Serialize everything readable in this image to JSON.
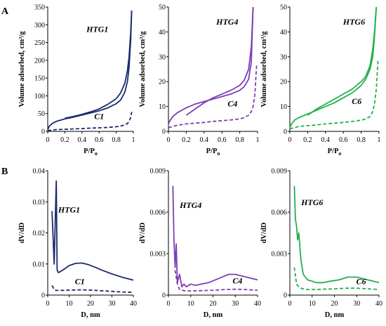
{
  "figure": {
    "letters": [
      "A",
      "B"
    ]
  },
  "chart_data": [
    {
      "type": "line",
      "panel_letter": "A",
      "xlabel": "P/P",
      "xlabel_sub": "o",
      "ylabel": "Volume adsorbed, cm³/g",
      "xlim": [
        0,
        1
      ],
      "ylim": [
        0,
        350
      ],
      "xticks": [
        "0",
        "0.2",
        "0.4",
        "0.6",
        "0.8",
        "1"
      ],
      "yticks": [
        "0",
        "50",
        "100",
        "150",
        "200",
        "250",
        "300",
        "350"
      ],
      "color": "#1a2a6c",
      "series": [
        {
          "name": "HTG1",
          "style": "solid",
          "x": [
            0.0,
            0.02,
            0.05,
            0.1,
            0.2,
            0.3,
            0.4,
            0.5,
            0.6,
            0.7,
            0.8,
            0.85,
            0.9,
            0.93,
            0.95,
            0.97,
            0.98
          ],
          "y": [
            5,
            15,
            22,
            28,
            35,
            40,
            46,
            52,
            58,
            66,
            78,
            88,
            110,
            140,
            180,
            260,
            340
          ]
        },
        {
          "name": "",
          "style": "solid",
          "x": [
            0.98,
            0.97,
            0.95,
            0.93,
            0.9,
            0.85,
            0.8,
            0.7,
            0.6,
            0.5,
            0.4,
            0.3,
            0.2
          ],
          "y": [
            340,
            280,
            210,
            170,
            135,
            108,
            92,
            76,
            63,
            55,
            48,
            42,
            37
          ]
        },
        {
          "name": "C1",
          "style": "dashed",
          "x": [
            0.0,
            0.05,
            0.1,
            0.2,
            0.3,
            0.4,
            0.5,
            0.6,
            0.7,
            0.8,
            0.85,
            0.9,
            0.93,
            0.95,
            0.97,
            0.98
          ],
          "y": [
            2,
            4,
            5,
            6,
            7,
            8,
            9,
            10,
            11,
            13,
            15,
            18,
            22,
            28,
            40,
            55
          ]
        }
      ],
      "labels": [
        {
          "text": "HTG1",
          "x": 0.58,
          "y": 280
        },
        {
          "text": "C1",
          "x": 0.6,
          "y": 35
        }
      ]
    },
    {
      "type": "line",
      "xlabel": "P/P",
      "xlabel_sub": "o",
      "ylabel": "Volume adsorbed, cm³/g",
      "xlim": [
        0,
        1
      ],
      "ylim": [
        0,
        50
      ],
      "xticks": [
        "0",
        "0.2",
        "0.4",
        "0.6",
        "0.8",
        "1"
      ],
      "yticks": [
        "0",
        "10",
        "20",
        "30",
        "40",
        "50"
      ],
      "color": "#7b3fb5",
      "series": [
        {
          "name": "HTG4",
          "style": "solid",
          "x": [
            0.0,
            0.02,
            0.05,
            0.1,
            0.2,
            0.3,
            0.4,
            0.5,
            0.6,
            0.7,
            0.8,
            0.85,
            0.9,
            0.93,
            0.95
          ],
          "y": [
            3,
            4.5,
            6,
            7.5,
            9.5,
            11,
            12,
            13,
            14,
            15,
            16.5,
            18,
            21,
            28,
            50
          ]
        },
        {
          "name": "",
          "style": "solid",
          "x": [
            0.95,
            0.93,
            0.9,
            0.85,
            0.8,
            0.7,
            0.6,
            0.5,
            0.4,
            0.3,
            0.2
          ],
          "y": [
            50,
            34,
            25,
            20.5,
            18.5,
            16.5,
            15,
            13.5,
            11.5,
            9,
            6.5
          ]
        },
        {
          "name": "C4",
          "style": "dashed",
          "x": [
            0.0,
            0.05,
            0.1,
            0.2,
            0.3,
            0.4,
            0.5,
            0.6,
            0.7,
            0.8,
            0.85,
            0.9,
            0.93,
            0.95,
            0.97,
            0.99
          ],
          "y": [
            1.5,
            2,
            2.5,
            3,
            3.3,
            3.6,
            4,
            4.3,
            4.6,
            5,
            5.5,
            6.5,
            8,
            10,
            15,
            27
          ]
        }
      ],
      "labels": [
        {
          "text": "HTG4",
          "x": 0.66,
          "y": 43
        },
        {
          "text": "C4",
          "x": 0.72,
          "y": 10
        }
      ]
    },
    {
      "type": "line",
      "xlabel": "P/P",
      "xlabel_sub": "o",
      "ylabel": "Volume adsorbed, cm³/g",
      "xlim": [
        0,
        1
      ],
      "ylim": [
        0,
        50
      ],
      "xticks": [
        "0",
        "0.2",
        "0.4",
        "0.6",
        "0.8",
        "1"
      ],
      "yticks": [
        "0",
        "10",
        "20",
        "30",
        "40",
        "50"
      ],
      "color": "#22b04b",
      "series": [
        {
          "name": "HTG6",
          "style": "solid",
          "x": [
            0.0,
            0.02,
            0.05,
            0.1,
            0.2,
            0.3,
            0.4,
            0.5,
            0.6,
            0.7,
            0.8,
            0.85,
            0.9,
            0.93,
            0.95,
            0.97
          ],
          "y": [
            1.5,
            3,
            4.5,
            5.5,
            7,
            8.5,
            10,
            11.5,
            13.5,
            15.5,
            18.5,
            21,
            25,
            30,
            38,
            50
          ]
        },
        {
          "name": "",
          "style": "solid",
          "x": [
            0.97,
            0.95,
            0.93,
            0.9,
            0.85,
            0.8,
            0.7,
            0.6,
            0.5,
            0.4,
            0.3,
            0.2
          ],
          "y": [
            50,
            40,
            33,
            26.5,
            22,
            20,
            17,
            15,
            13,
            11,
            9,
            6.5
          ]
        },
        {
          "name": "C6",
          "style": "dashed",
          "x": [
            0.0,
            0.05,
            0.1,
            0.2,
            0.3,
            0.4,
            0.5,
            0.6,
            0.7,
            0.8,
            0.85,
            0.9,
            0.93,
            0.95,
            0.97,
            0.99
          ],
          "y": [
            1,
            1.5,
            2,
            2.3,
            2.6,
            3,
            3.3,
            3.6,
            4,
            4.5,
            5,
            6,
            8,
            11,
            17,
            29
          ]
        }
      ],
      "labels": [
        {
          "text": "HTG6",
          "x": 0.72,
          "y": 43
        },
        {
          "text": "C6",
          "x": 0.75,
          "y": 11
        }
      ]
    },
    {
      "type": "line",
      "panel_letter": "B",
      "xlabel": "D, nm",
      "ylabel": "dV/dD",
      "xlim": [
        0,
        40
      ],
      "ylim": [
        0,
        0.04
      ],
      "xticks": [
        "0",
        "10",
        "20",
        "30",
        "40"
      ],
      "yticks": [
        "0",
        "0.01",
        "0.02",
        "0.03",
        "0.04"
      ],
      "color": "#1a2a6c",
      "series": [
        {
          "name": "HTG1",
          "style": "solid",
          "x": [
            2,
            3,
            3.5,
            4,
            4.4,
            5,
            6,
            8,
            10,
            13,
            16,
            19,
            22,
            25,
            30,
            35,
            40
          ],
          "y": [
            0.027,
            0.01,
            0.024,
            0.0367,
            0.008,
            0.0072,
            0.0076,
            0.0085,
            0.0095,
            0.0102,
            0.0103,
            0.0098,
            0.009,
            0.0081,
            0.0068,
            0.0057,
            0.0048
          ]
        },
        {
          "name": "C1",
          "style": "dashed",
          "x": [
            2,
            3,
            4,
            6,
            10,
            15,
            20,
            25,
            30,
            35,
            40
          ],
          "y": [
            0.0031,
            0.0018,
            0.0015,
            0.0015,
            0.0016,
            0.0017,
            0.0016,
            0.0014,
            0.0012,
            0.001,
            0.0009
          ]
        }
      ],
      "labels": [
        {
          "text": "HTG1",
          "x": 10,
          "y": 0.0265
        },
        {
          "text": "C1",
          "x": 15,
          "y": 0.0035
        }
      ]
    },
    {
      "type": "line",
      "xlabel": "D, nm",
      "ylabel": "dV/dD",
      "xlim": [
        0,
        40
      ],
      "ylim": [
        0,
        0.009
      ],
      "xticks": [
        "0",
        "10",
        "20",
        "30",
        "40"
      ],
      "yticks": [
        "0",
        "0.003",
        "0.006",
        "0.009"
      ],
      "color": "#7b3fb5",
      "series": [
        {
          "name": "HTG4",
          "style": "solid",
          "x": [
            2,
            2.5,
            3,
            3.5,
            4,
            5,
            6,
            7,
            8,
            10,
            12,
            15,
            18,
            21,
            24,
            27,
            30,
            35,
            40
          ],
          "y": [
            0.0079,
            0.004,
            0.002,
            0.0037,
            0.0009,
            0.0015,
            0.0006,
            0.0008,
            0.0006,
            0.0008,
            0.0007,
            0.0008,
            0.0009,
            0.0011,
            0.0013,
            0.0015,
            0.0015,
            0.0013,
            0.0011
          ]
        },
        {
          "name": "C4",
          "style": "dashed",
          "x": [
            3,
            4,
            5,
            6,
            8,
            10,
            15,
            20,
            25,
            30,
            35,
            40
          ],
          "y": [
            0.0018,
            0.0008,
            0.0004,
            0.00035,
            0.0003,
            0.0003,
            0.00032,
            0.00035,
            0.0004,
            0.00042,
            0.0004,
            0.00035
          ]
        }
      ],
      "labels": [
        {
          "text": "HTG4",
          "x": 10,
          "y": 0.0063
        },
        {
          "text": "C4",
          "x": 31,
          "y": 0.00085
        }
      ]
    },
    {
      "type": "line",
      "xlabel": "D, nm",
      "ylabel": "dV/dD",
      "xlim": [
        0,
        40
      ],
      "ylim": [
        0,
        0.009
      ],
      "xticks": [
        "0",
        "10",
        "20",
        "30",
        "40"
      ],
      "yticks": [
        "0",
        "0.003",
        "0.006",
        "0.009"
      ],
      "color": "#22b04b",
      "series": [
        {
          "name": "HTG6",
          "style": "solid",
          "x": [
            2,
            2.5,
            3,
            3.5,
            4,
            5,
            6,
            8,
            10,
            12,
            15,
            18,
            22,
            26,
            30,
            35,
            40
          ],
          "y": [
            0.0079,
            0.0055,
            0.005,
            0.004,
            0.0045,
            0.0025,
            0.0015,
            0.0011,
            0.001,
            0.0009,
            0.0009,
            0.001,
            0.0011,
            0.0013,
            0.0013,
            0.0011,
            0.0009
          ]
        },
        {
          "name": "C6",
          "style": "dashed",
          "x": [
            2,
            3,
            4,
            5,
            6,
            8,
            10,
            15,
            20,
            25,
            30,
            35,
            40
          ],
          "y": [
            0.002,
            0.0008,
            0.0006,
            0.0005,
            0.00045,
            0.0004,
            0.0004,
            0.00042,
            0.00045,
            0.0005,
            0.0005,
            0.00045,
            0.0004
          ]
        }
      ],
      "labels": [
        {
          "text": "HTG6",
          "x": 10,
          "y": 0.0065
        },
        {
          "text": "C6",
          "x": 32,
          "y": 0.0008
        }
      ]
    }
  ]
}
